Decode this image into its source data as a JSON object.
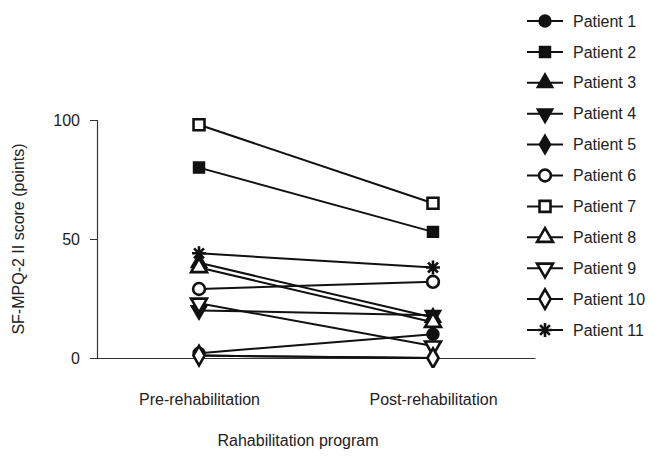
{
  "chart_data": {
    "type": "line",
    "x_label": "Rahabilitation program",
    "y_label": "SF-MPQ-2 II score (points)",
    "categories": [
      "Pre-rehabilitation",
      "Post-rehabilitation"
    ],
    "ylim": [
      0,
      100
    ],
    "yticks": [
      0,
      50,
      100
    ],
    "grid": false,
    "legend": "right",
    "color": "#111111",
    "series": [
      {
        "name": "Patient 1",
        "marker": "circle",
        "values": [
          2,
          10
        ]
      },
      {
        "name": "Patient 2",
        "marker": "square",
        "values": [
          80,
          53
        ]
      },
      {
        "name": "Patient 3",
        "marker": "triangle",
        "values": [
          40,
          17
        ]
      },
      {
        "name": "Patient 4",
        "marker": "triangle-down",
        "values": [
          20,
          18
        ]
      },
      {
        "name": "Patient 5",
        "marker": "diamond",
        "values": [
          1,
          0
        ]
      },
      {
        "name": "Patient 6",
        "marker": "circle-open",
        "values": [
          29,
          32
        ]
      },
      {
        "name": "Patient 7",
        "marker": "square-open",
        "values": [
          98,
          65
        ]
      },
      {
        "name": "Patient 8",
        "marker": "triangle-open",
        "values": [
          38,
          15
        ]
      },
      {
        "name": "Patient 9",
        "marker": "triangle-down-open",
        "values": [
          23,
          5
        ]
      },
      {
        "name": "Patient 10",
        "marker": "diamond-open",
        "values": [
          1,
          0
        ]
      },
      {
        "name": "Patient 11",
        "marker": "asterisk",
        "values": [
          44,
          38
        ]
      }
    ]
  }
}
